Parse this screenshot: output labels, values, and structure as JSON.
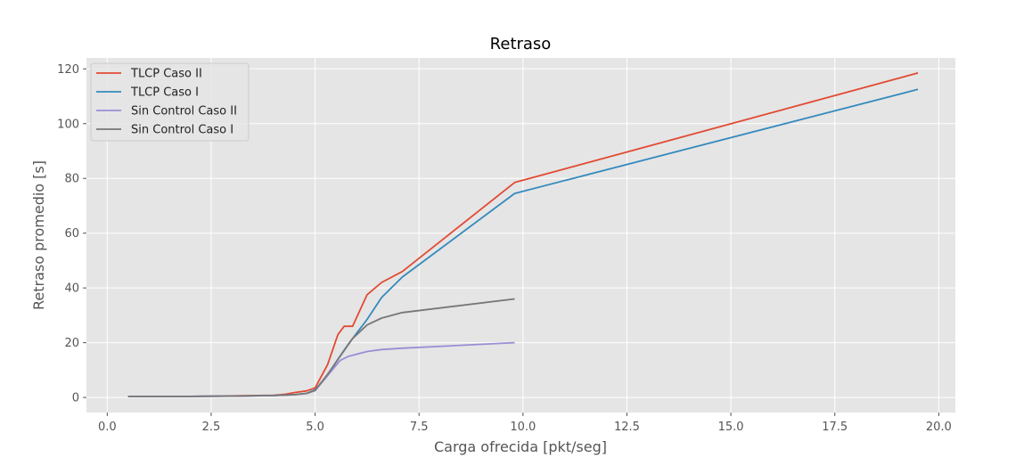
{
  "chart_data": {
    "type": "line",
    "title": "Retraso",
    "xlabel": "Carga ofrecida [pkt/seg]",
    "ylabel": "Retraso promedio [s]",
    "xlim": [
      -0.5,
      20.4
    ],
    "ylim": [
      -5.5,
      124
    ],
    "xticks": [
      "0.0",
      "2.5",
      "5.0",
      "7.5",
      "10.0",
      "12.5",
      "15.0",
      "17.5",
      "20.0"
    ],
    "yticks": [
      "0",
      "20",
      "40",
      "60",
      "80",
      "100",
      "120"
    ],
    "grid": true,
    "legend_position": "top-left",
    "style": "ggplot",
    "series": [
      {
        "name": "TLCP Caso II",
        "color": "#E24A33",
        "x": [
          0.5,
          1.0,
          2.0,
          3.0,
          4.0,
          4.3,
          4.5,
          4.8,
          5.0,
          5.3,
          5.55,
          5.7,
          5.9,
          6.25,
          6.6,
          7.1,
          9.8,
          19.5
        ],
        "y": [
          0.4,
          0.4,
          0.4,
          0.6,
          0.8,
          1.2,
          1.8,
          2.4,
          3.5,
          12.0,
          23.0,
          26.0,
          26.0,
          37.5,
          42.0,
          46.0,
          78.5,
          118.5
        ]
      },
      {
        "name": "TLCP Caso I",
        "color": "#348ABD",
        "x": [
          0.5,
          1.0,
          2.0,
          3.0,
          4.0,
          4.5,
          4.8,
          5.0,
          5.3,
          5.55,
          5.8,
          6.25,
          6.6,
          7.1,
          9.8,
          19.5
        ],
        "y": [
          0.4,
          0.4,
          0.4,
          0.5,
          0.7,
          1.0,
          1.5,
          2.8,
          8.0,
          14.0,
          19.5,
          28.5,
          36.5,
          44.0,
          74.5,
          112.5
        ]
      },
      {
        "name": "Sin Control Caso II",
        "color": "#988ED5",
        "x": [
          0.5,
          1.0,
          2.0,
          3.0,
          4.0,
          4.5,
          4.8,
          5.0,
          5.3,
          5.6,
          5.8,
          6.25,
          6.6,
          7.1,
          9.8
        ],
        "y": [
          0.4,
          0.4,
          0.4,
          0.5,
          0.7,
          1.0,
          1.5,
          2.5,
          8.0,
          13.5,
          15.0,
          16.8,
          17.5,
          18.0,
          20.0
        ]
      },
      {
        "name": "Sin Control Caso I",
        "color": "#777777",
        "x": [
          0.5,
          1.0,
          2.0,
          3.0,
          4.0,
          4.5,
          4.8,
          5.0,
          5.3,
          5.6,
          5.9,
          6.25,
          6.6,
          7.1,
          9.8
        ],
        "y": [
          0.4,
          0.4,
          0.4,
          0.5,
          0.7,
          1.0,
          1.5,
          2.6,
          8.5,
          15.0,
          21.5,
          26.5,
          29.0,
          31.0,
          36.0
        ]
      }
    ]
  }
}
